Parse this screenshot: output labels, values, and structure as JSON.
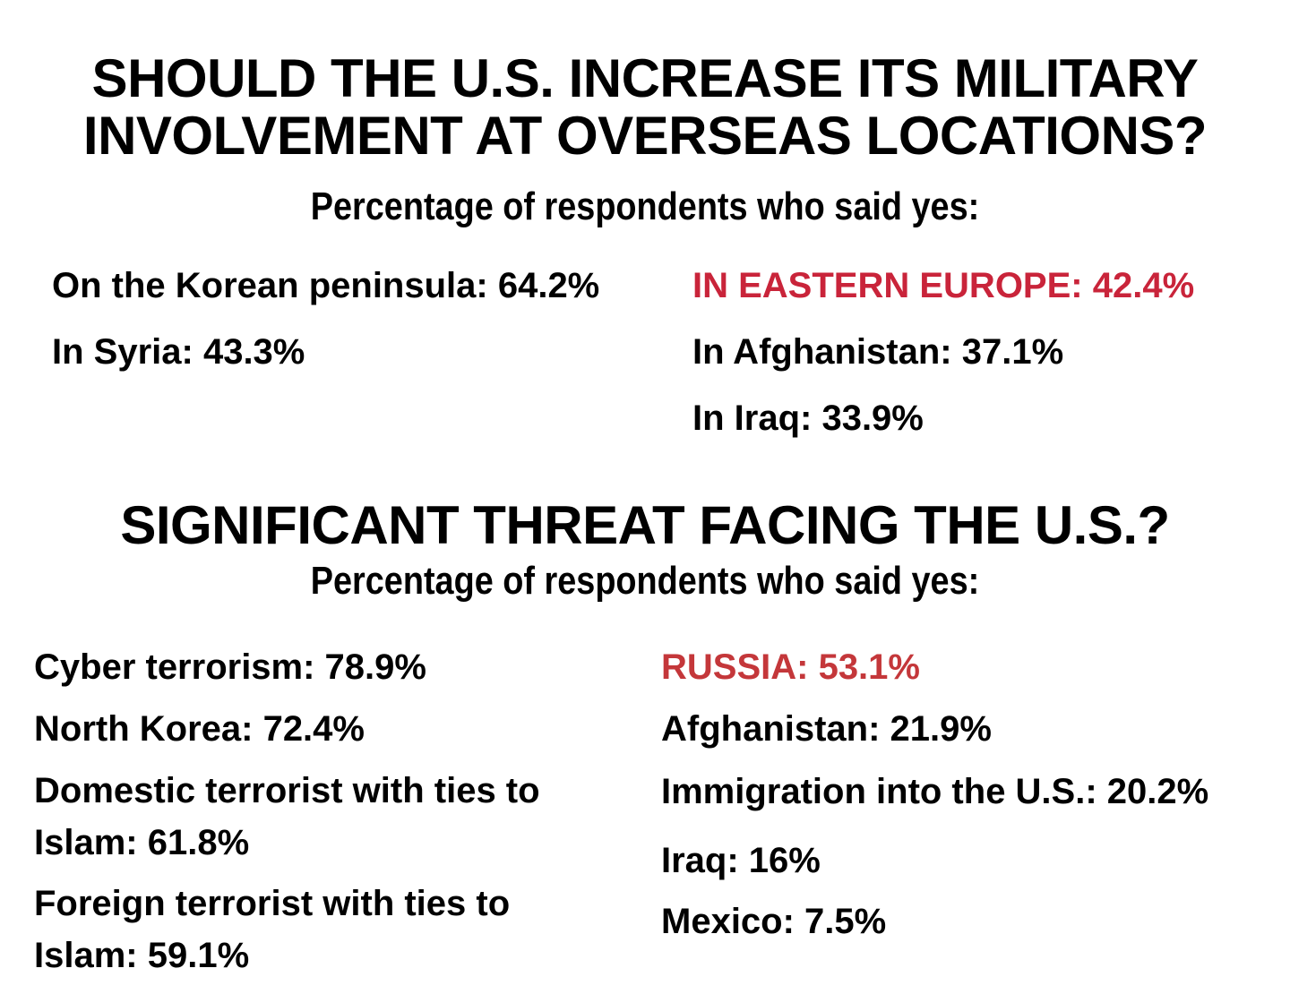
{
  "section1": {
    "title_line1": "SHOULD THE U.S. INCREASE ITS MILITARY",
    "title_line2": "INVOLVEMENT AT OVERSEAS LOCATIONS?",
    "subtitle": "Percentage of respondents who said yes:",
    "left": [
      "On the Korean peninsula: 64.2%",
      "In Syria: 43.3%"
    ],
    "right": [
      "IN EASTERN EUROPE: 42.4%",
      "In Afghanistan: 37.1%",
      "In Iraq: 33.9%"
    ],
    "highlight_color": "#c9243a"
  },
  "section2": {
    "title": "SIGNIFICANT THREAT FACING THE U.S.?",
    "subtitle": "Percentage of respondents who said yes:",
    "left": [
      "Cyber terrorism: 78.9%",
      "North Korea: 72.4%",
      "Domestic terrorist with ties to Islam: 61.8%",
      "Foreign terrorist with ties to Islam: 59.1%"
    ],
    "right": [
      "RUSSIA: 53.1%",
      "Afghanistan: 21.9%",
      "Immigration into the U.S.: 20.2%",
      "Iraq: 16%",
      "Mexico: 7.5%"
    ],
    "highlight_color": "#c4373a"
  }
}
